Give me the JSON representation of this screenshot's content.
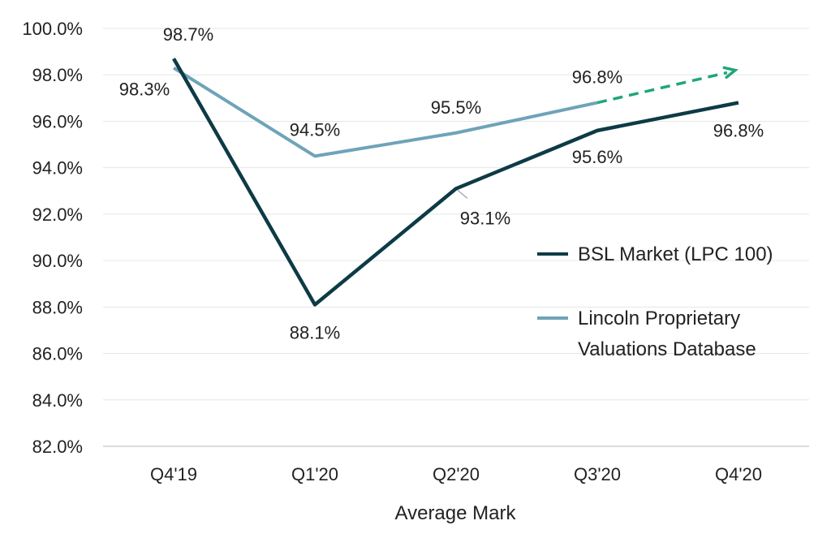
{
  "chart_data": {
    "type": "line",
    "title": "",
    "xlabel": "Average Mark",
    "ylabel": "",
    "categories": [
      "Q4'19",
      "Q1'20",
      "Q2'20",
      "Q3'20",
      "Q4'20"
    ],
    "ylim": [
      82.0,
      100.0
    ],
    "yticks": [
      "82.0%",
      "84.0%",
      "86.0%",
      "88.0%",
      "90.0%",
      "92.0%",
      "94.0%",
      "96.0%",
      "98.0%",
      "100.0%"
    ],
    "grid": true,
    "legend_position": "right",
    "series": [
      {
        "name": "BSL Market (LPC 100)",
        "color": "#0d3b45",
        "values": [
          98.7,
          88.1,
          93.1,
          95.6,
          96.8
        ],
        "labels": [
          "98.7%",
          "88.1%",
          "93.1%",
          "95.6%",
          "96.8%"
        ]
      },
      {
        "name_lines": [
          "Lincoln Proprietary",
          "Valuations Database"
        ],
        "color": "#6fa3b8",
        "values": [
          98.3,
          94.5,
          95.5,
          96.8,
          null
        ],
        "labels": [
          "98.3%",
          "94.5%",
          "95.5%",
          "96.8%",
          ""
        ]
      }
    ],
    "projection": {
      "color": "#1fa67a",
      "from": 96.8,
      "to": 98.2,
      "style": "dashed-arrow"
    }
  }
}
